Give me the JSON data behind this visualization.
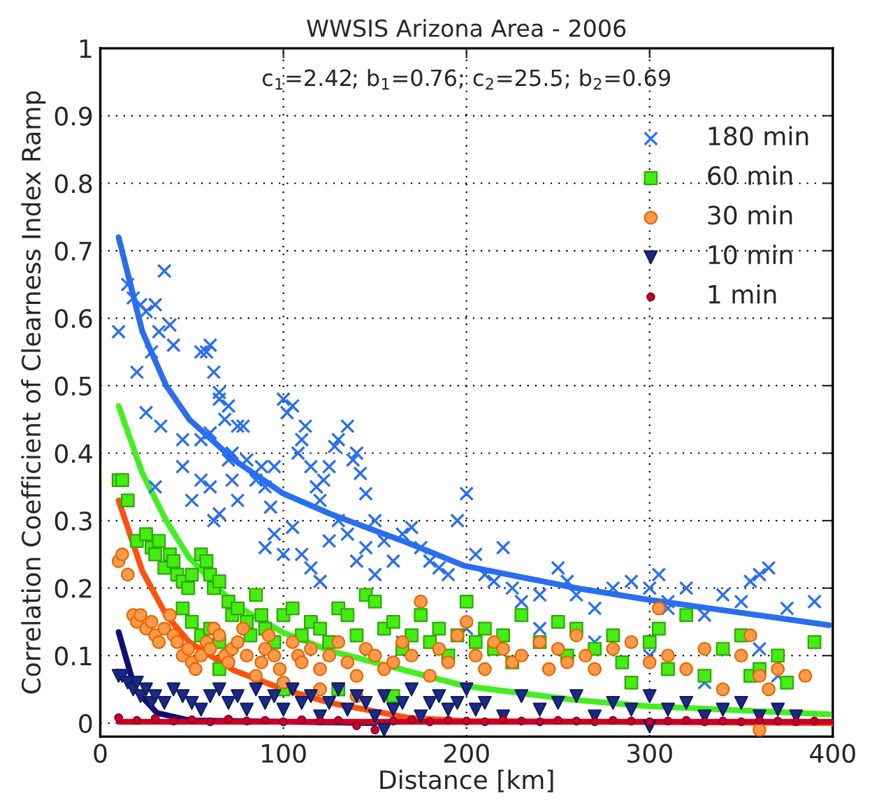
{
  "chart_data": {
    "type": "scatter",
    "title": "WWSIS Arizona Area - 2006",
    "xlabel": "Distance [km]",
    "ylabel": "Correlation Coefficient of Clearness Index Ramp",
    "annotations": [
      "c$_{1}$=2.42; b$_{1}$=0.76; c$_{2}$=25.5; b$_{2}$=0.69"
    ],
    "xlim": [
      0,
      400
    ],
    "ylim": [
      -0.02,
      1
    ],
    "xticks": [
      0,
      100,
      200,
      300,
      400
    ],
    "yticks": [
      0,
      0.1,
      0.2,
      0.3,
      0.4,
      0.5,
      0.6,
      0.7,
      0.8,
      0.9,
      1
    ],
    "grid": true,
    "legend": "top right",
    "series": [
      {
        "name": "180 min",
        "marker": "cross",
        "color": "#2a6ef0",
        "x": [
          10,
          15,
          18,
          22,
          25,
          30,
          35,
          20,
          28,
          32,
          38,
          40,
          25,
          33,
          30,
          45,
          45,
          50,
          55,
          58,
          60,
          62,
          65,
          55,
          60,
          65,
          68,
          70,
          72,
          75,
          78,
          55,
          60,
          62,
          65,
          70,
          72,
          75,
          80,
          85,
          88,
          90,
          93,
          95,
          100,
          102,
          105,
          108,
          110,
          112,
          115,
          118,
          120,
          122,
          125,
          128,
          130,
          135,
          138,
          140,
          142,
          145,
          150,
          90,
          95,
          100,
          105,
          110,
          115,
          120,
          125,
          130,
          135,
          140,
          145,
          150,
          155,
          160,
          165,
          170,
          175,
          180,
          185,
          190,
          195,
          200,
          205,
          210,
          215,
          220,
          225,
          230,
          240,
          250,
          255,
          260,
          270,
          280,
          290,
          300,
          305,
          310,
          320,
          330,
          340,
          350,
          355,
          360,
          365,
          375,
          390,
          165,
          200,
          240,
          270,
          300,
          330,
          360,
          370,
          310
        ],
        "values": [
          0.58,
          0.65,
          0.63,
          0.62,
          0.61,
          0.62,
          0.67,
          0.52,
          0.55,
          0.58,
          0.59,
          0.56,
          0.46,
          0.44,
          0.35,
          0.42,
          0.38,
          0.33,
          0.55,
          0.55,
          0.56,
          0.52,
          0.49,
          0.42,
          0.43,
          0.48,
          0.45,
          0.47,
          0.4,
          0.44,
          0.44,
          0.36,
          0.35,
          0.3,
          0.31,
          0.39,
          0.36,
          0.33,
          0.39,
          0.36,
          0.38,
          0.35,
          0.32,
          0.38,
          0.48,
          0.46,
          0.47,
          0.4,
          0.42,
          0.44,
          0.38,
          0.35,
          0.33,
          0.36,
          0.38,
          0.41,
          0.42,
          0.44,
          0.39,
          0.4,
          0.37,
          0.34,
          0.3,
          0.26,
          0.28,
          0.25,
          0.29,
          0.25,
          0.23,
          0.21,
          0.27,
          0.3,
          0.28,
          0.24,
          0.26,
          0.22,
          0.27,
          0.24,
          0.28,
          0.29,
          0.26,
          0.24,
          0.23,
          0.22,
          0.3,
          0.34,
          0.25,
          0.22,
          0.21,
          0.26,
          0.2,
          0.18,
          0.19,
          0.23,
          0.21,
          0.19,
          0.17,
          0.2,
          0.21,
          0.2,
          0.22,
          0.18,
          0.2,
          0.16,
          0.19,
          0.18,
          0.21,
          0.22,
          0.23,
          0.17,
          0.18,
          0.12,
          0.14,
          0.14,
          0.12,
          0.1,
          0.06,
          0.11,
          0.07,
          0.17
        ]
      },
      {
        "name": "60 min",
        "marker": "square",
        "color": "#44ee11",
        "x": [
          10,
          12,
          15,
          20,
          25,
          28,
          30,
          32,
          35,
          38,
          40,
          42,
          45,
          48,
          50,
          55,
          58,
          60,
          62,
          65,
          45,
          50,
          55,
          60,
          65,
          70,
          72,
          75,
          80,
          82,
          85,
          88,
          90,
          95,
          100,
          105,
          110,
          115,
          120,
          125,
          130,
          135,
          140,
          145,
          150,
          155,
          160,
          165,
          170,
          175,
          180,
          185,
          190,
          195,
          200,
          205,
          210,
          215,
          220,
          225,
          230,
          240,
          250,
          255,
          260,
          270,
          280,
          285,
          290,
          300,
          305,
          310,
          320,
          330,
          340,
          350,
          355,
          360,
          370,
          375,
          390,
          65,
          130,
          100,
          160
        ],
        "values": [
          0.36,
          0.36,
          0.33,
          0.27,
          0.28,
          0.26,
          0.25,
          0.27,
          0.23,
          0.25,
          0.24,
          0.22,
          0.21,
          0.2,
          0.22,
          0.25,
          0.24,
          0.22,
          0.2,
          0.21,
          0.17,
          0.15,
          0.13,
          0.14,
          0.12,
          0.18,
          0.16,
          0.17,
          0.15,
          0.13,
          0.19,
          0.16,
          0.14,
          0.12,
          0.16,
          0.17,
          0.13,
          0.15,
          0.14,
          0.12,
          0.17,
          0.16,
          0.13,
          0.19,
          0.18,
          0.14,
          0.15,
          0.11,
          0.13,
          0.16,
          0.12,
          0.14,
          0.1,
          0.13,
          0.18,
          0.12,
          0.14,
          0.11,
          0.13,
          0.09,
          0.16,
          0.12,
          0.15,
          0.1,
          0.14,
          0.11,
          0.13,
          0.09,
          0.06,
          0.12,
          0.14,
          0.08,
          0.16,
          0.07,
          0.11,
          0.13,
          0.07,
          0.08,
          0.1,
          0.06,
          0.12,
          0.08,
          0.05,
          0.05,
          0.04
        ]
      },
      {
        "name": "30 min",
        "marker": "circle",
        "color": "#ff9a4a",
        "x": [
          10,
          12,
          15,
          18,
          20,
          22,
          25,
          28,
          30,
          32,
          35,
          38,
          40,
          42,
          45,
          48,
          50,
          52,
          55,
          58,
          60,
          62,
          65,
          68,
          70,
          72,
          75,
          78,
          80,
          85,
          88,
          90,
          92,
          95,
          98,
          100,
          105,
          108,
          110,
          115,
          120,
          125,
          130,
          135,
          140,
          145,
          150,
          155,
          160,
          165,
          170,
          175,
          180,
          185,
          190,
          195,
          200,
          205,
          210,
          215,
          220,
          225,
          230,
          240,
          245,
          250,
          255,
          260,
          265,
          270,
          280,
          290,
          300,
          305,
          310,
          320,
          330,
          340,
          350,
          355,
          360,
          365,
          370,
          385,
          360,
          120,
          140
        ],
        "values": [
          0.24,
          0.25,
          0.22,
          0.16,
          0.15,
          0.16,
          0.14,
          0.15,
          0.13,
          0.12,
          0.14,
          0.16,
          0.13,
          0.12,
          0.1,
          0.11,
          0.09,
          0.08,
          0.1,
          0.12,
          0.11,
          0.14,
          0.13,
          0.1,
          0.09,
          0.11,
          0.12,
          0.14,
          0.1,
          0.07,
          0.09,
          0.11,
          0.13,
          0.1,
          0.08,
          0.06,
          0.12,
          0.1,
          0.09,
          0.11,
          0.08,
          0.1,
          0.12,
          0.09,
          0.07,
          0.11,
          0.1,
          0.08,
          0.09,
          0.12,
          0.1,
          0.18,
          0.07,
          0.11,
          0.09,
          0.13,
          0.15,
          0.1,
          0.08,
          0.12,
          0.11,
          0.09,
          0.1,
          0.12,
          0.08,
          0.11,
          0.09,
          0.13,
          0.1,
          0.08,
          0.11,
          0.12,
          0.09,
          0.17,
          0.1,
          0.08,
          0.11,
          0.05,
          0.1,
          0.13,
          0.07,
          0.05,
          0.08,
          0.07,
          -0.01,
          0.05,
          0.04
        ]
      },
      {
        "name": "10 min",
        "marker": "triangle",
        "color": "#1a2a8a",
        "x": [
          10,
          12,
          15,
          18,
          20,
          22,
          25,
          28,
          30,
          35,
          40,
          45,
          50,
          55,
          60,
          65,
          70,
          75,
          80,
          85,
          90,
          95,
          100,
          105,
          110,
          115,
          120,
          125,
          130,
          135,
          140,
          145,
          150,
          155,
          160,
          165,
          170,
          175,
          180,
          185,
          190,
          195,
          200,
          205,
          210,
          220,
          230,
          240,
          250,
          260,
          270,
          280,
          290,
          300,
          310,
          320,
          330,
          340,
          350,
          360,
          370,
          380,
          155,
          300
        ],
        "values": [
          0.07,
          0.07,
          0.06,
          0.05,
          0.06,
          0.04,
          0.05,
          0.03,
          0.04,
          0.03,
          0.05,
          0.04,
          0.03,
          0.02,
          0.04,
          0.05,
          0.03,
          0.04,
          0.02,
          0.05,
          0.03,
          0.04,
          0.02,
          0.05,
          0.03,
          0.04,
          0.01,
          0.03,
          0.05,
          0.02,
          0.04,
          0.03,
          0.01,
          0.04,
          0.02,
          0.03,
          0.05,
          0.01,
          0.03,
          0.04,
          0.02,
          0.03,
          0.05,
          0.02,
          0.03,
          0.01,
          0.04,
          0.02,
          0.03,
          0.04,
          0.01,
          0.03,
          0.02,
          0.04,
          0.02,
          0.03,
          0.01,
          0.02,
          0.03,
          0.01,
          0.02,
          0.01,
          -0.01,
          -0.005
        ]
      },
      {
        "name": "1 min",
        "marker": "circle",
        "color": "#cc0033",
        "x": [
          10,
          20,
          30,
          40,
          50,
          60,
          70,
          80,
          90,
          100,
          110,
          120,
          130,
          140,
          150,
          160,
          170,
          180,
          190,
          200,
          210,
          220,
          230,
          240,
          250,
          260,
          270,
          280,
          290,
          300,
          310,
          320,
          330,
          340,
          350,
          360,
          370,
          380,
          390
        ],
        "values": [
          0.008,
          0.004,
          0.007,
          0.003,
          0.005,
          0.002,
          0.006,
          0.003,
          0.004,
          0.002,
          0.005,
          0.003,
          0.004,
          -0.004,
          -0.01,
          0.003,
          0.005,
          0.002,
          0.004,
          0.003,
          0.002,
          0.005,
          0.003,
          0.002,
          0.004,
          0.003,
          0.002,
          0.004,
          0.003,
          0.002,
          0.003,
          0.004,
          0.002,
          0.003,
          0.002,
          0.004,
          0.003,
          0.002,
          0.003
        ]
      },
      {
        "type": "line",
        "color": "#2a6ef0",
        "x": [
          10,
          23,
          36,
          48.6,
          73,
          100,
          125.6,
          168,
          199,
          260,
          299,
          398
        ],
        "values": [
          0.72,
          0.58,
          0.5,
          0.45,
          0.39,
          0.34,
          0.31,
          0.267,
          0.233,
          0.2,
          0.183,
          0.145
        ]
      },
      {
        "type": "line",
        "color": "#44ee22",
        "x": [
          10,
          23,
          36,
          48.6,
          73,
          100,
          125.6,
          199,
          260,
          299,
          398
        ],
        "values": [
          0.47,
          0.37,
          0.3,
          0.245,
          0.176,
          0.134,
          0.107,
          0.055,
          0.034,
          0.025,
          0.013
        ]
      },
      {
        "type": "line",
        "color": "#ff5010",
        "x": [
          10,
          23,
          36,
          48.6,
          73,
          100,
          125.6,
          168,
          200,
          400
        ],
        "values": [
          0.33,
          0.225,
          0.16,
          0.12,
          0.078,
          0.05,
          0.03,
          0.008,
          0.003,
          0
        ]
      },
      {
        "type": "line",
        "color": "#101070",
        "x": [
          10,
          19,
          31,
          48.6,
          150
        ],
        "values": [
          0.135,
          0.05,
          0.015,
          0.004,
          0
        ]
      },
      {
        "type": "line",
        "color": "#cc0022",
        "x": [
          10,
          400
        ],
        "values": [
          0.002,
          0.002
        ]
      }
    ]
  }
}
